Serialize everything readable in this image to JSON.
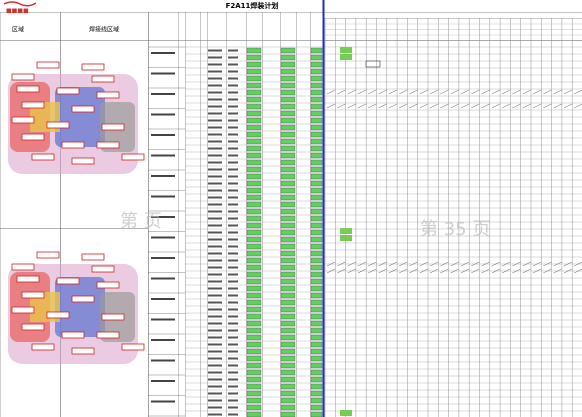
{
  "header": {
    "title": "F2A11焊装计划",
    "columns": [
      "区域",
      "焊接线区域"
    ]
  },
  "watermark": [
    "第 页",
    "第 35 页"
  ]
}
